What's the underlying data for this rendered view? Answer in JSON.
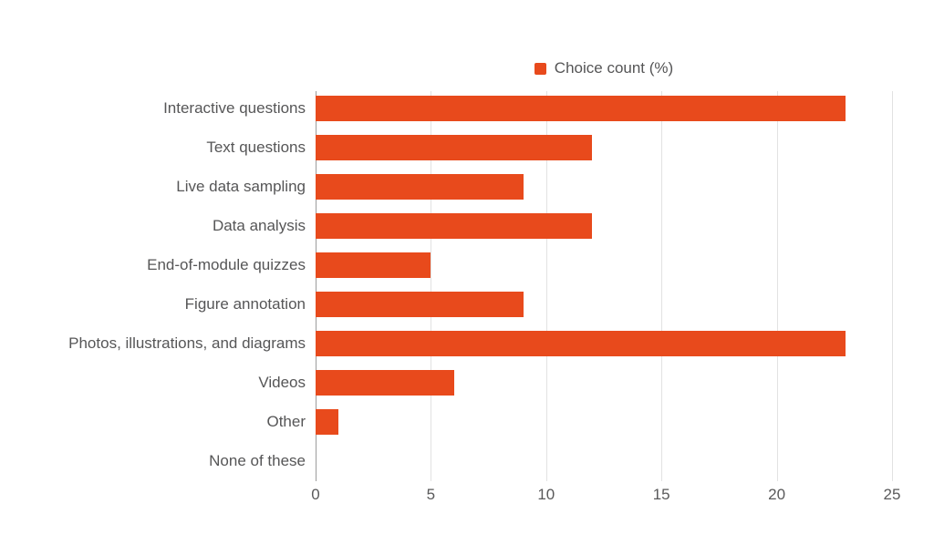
{
  "chart_data": {
    "type": "bar",
    "orientation": "horizontal",
    "legend": {
      "label": "Choice count (%)",
      "position": "top"
    },
    "categories": [
      "Interactive questions",
      "Text questions",
      "Live data sampling",
      "Data analysis",
      "End-of-module quizzes",
      "Figure annotation",
      "Photos, illustrations, and diagrams",
      "Videos",
      "Other",
      "None of these"
    ],
    "values": [
      23,
      12,
      9,
      12,
      5,
      9,
      23,
      6,
      1,
      0
    ],
    "xlabel": "",
    "ylabel": "",
    "xlim": [
      0,
      25
    ],
    "xticks": [
      0,
      5,
      10,
      15,
      20,
      25
    ],
    "grid": true
  },
  "colors": {
    "bar": "#e84a1c",
    "gridline": "#e2e2e2",
    "zero_axis": "#9c9c9c",
    "text": "#565657",
    "background": "#ffffff"
  }
}
